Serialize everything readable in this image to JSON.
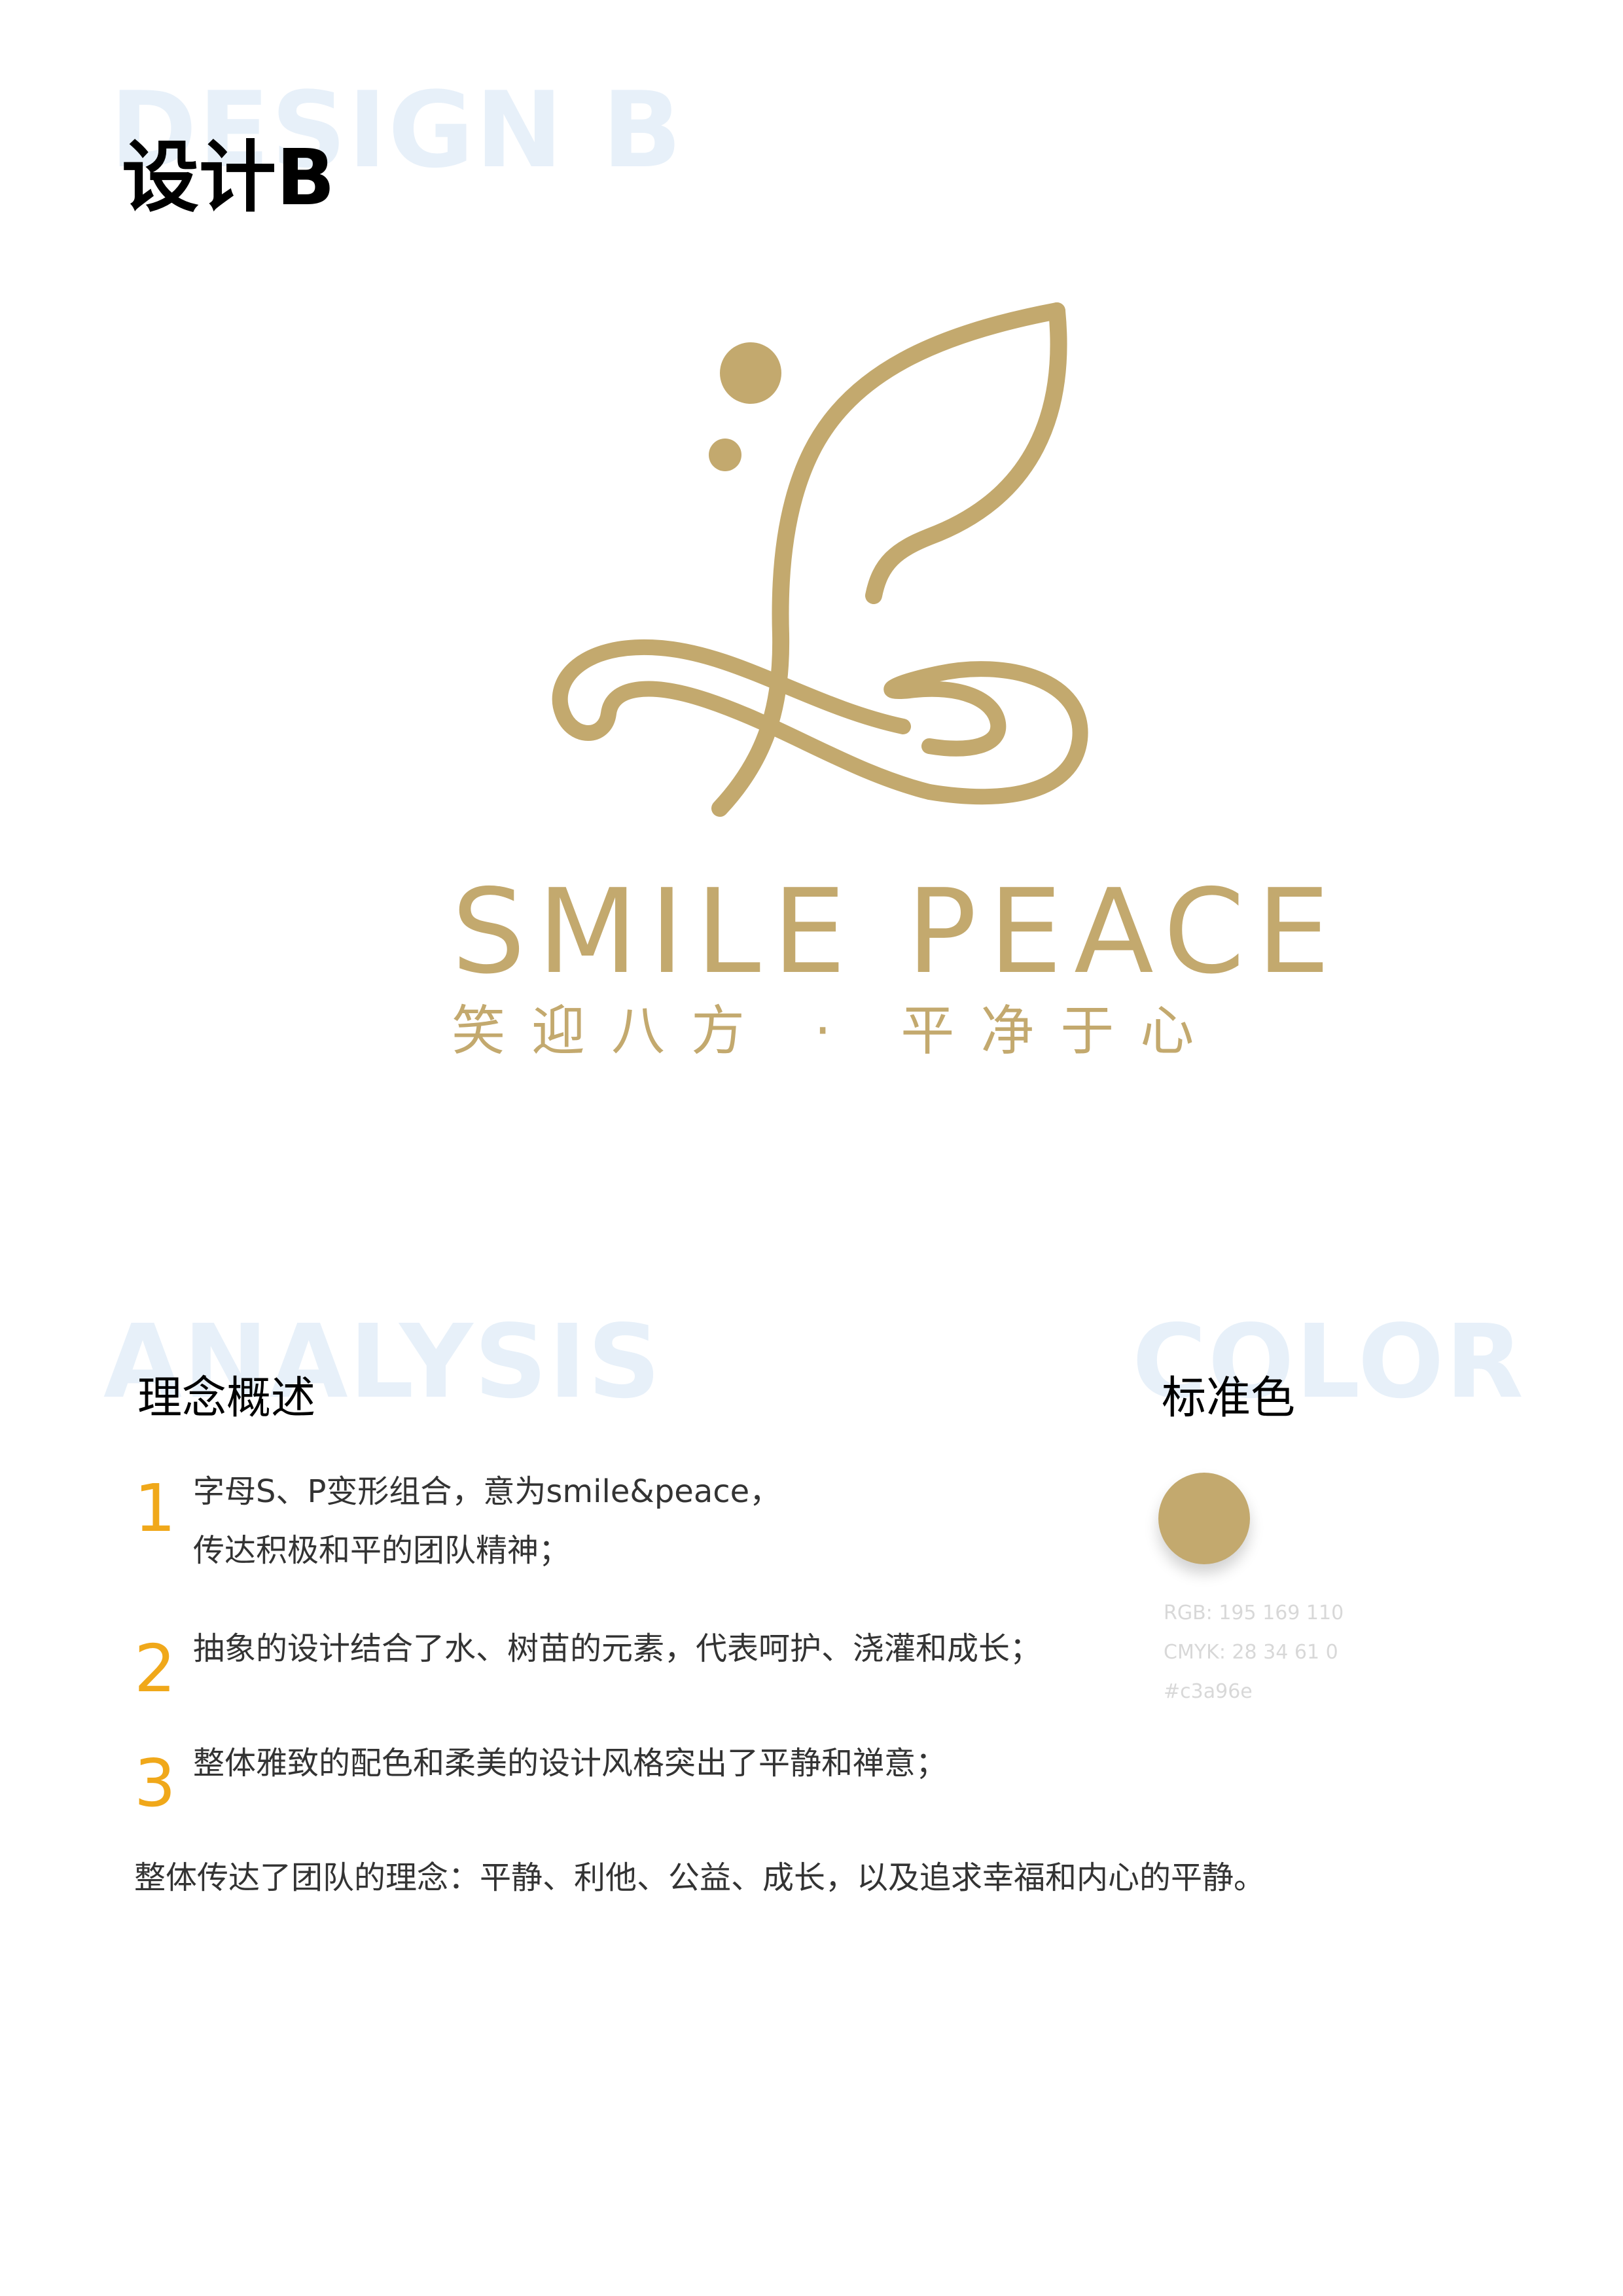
{
  "header": {
    "bg_word": "DESIGN B",
    "title": "设计B"
  },
  "logo": {
    "icon": "leaf-infinity-logo-icon",
    "name": "SMILE PEACE",
    "slogan": "笑迎八方 · 平净于心",
    "color": "#c3a96e"
  },
  "analysis": {
    "bg_word": "ANALYSIS",
    "heading": "理念概述",
    "points": [
      {
        "number": "1",
        "lines": [
          "字母S、P变形组合，意为smile&peace，",
          "传达积极和平的团队精神；"
        ]
      },
      {
        "number": "2",
        "lines": [
          "抽象的设计结合了水、树苗的元素，代表呵护、浇灌和成长；"
        ]
      },
      {
        "number": "3",
        "lines": [
          "整体雅致的配色和柔美的设计风格突出了平静和禅意；"
        ]
      }
    ],
    "summary": "整体传达了团队的理念：平静、利他、公益、成长，以及追求幸福和内心的平静。"
  },
  "color": {
    "bg_word": "COLOR",
    "heading": "标准色",
    "swatch": "#c3a96e",
    "rgb": "RGB: 195  169  110",
    "cmyk": "CMYK: 28  34  61  0",
    "hex": "#c3a96e"
  },
  "colors": {
    "gold": "#c3a96e",
    "accent_number": "#f0a81a",
    "bg_word": "#e7f0f9"
  }
}
